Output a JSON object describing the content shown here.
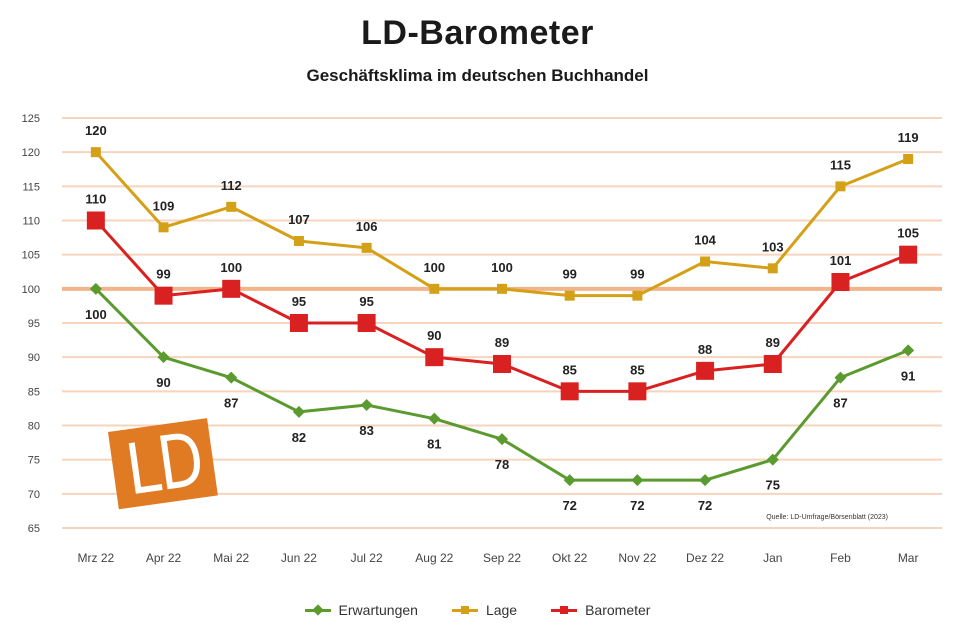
{
  "chart_data": {
    "type": "line",
    "title": "LD-Barometer",
    "subtitle": "Geschäftsklima im deutschen Buchhandel",
    "source": "Quelle: LD-Umfrage/Börsenblatt (2023)",
    "categories": [
      "Mrz 22",
      "Apr 22",
      "Mai 22",
      "Jun 22",
      "Jul 22",
      "Aug 22",
      "Sep 22",
      "Okt 22",
      "Nov 22",
      "Dez 22",
      "Jan",
      "Feb",
      "Mar"
    ],
    "ylim": [
      65,
      125
    ],
    "yticks": [
      65,
      70,
      75,
      80,
      85,
      90,
      95,
      100,
      105,
      110,
      115,
      120,
      125
    ],
    "grid": true,
    "highlight_line": 100,
    "legend_position": "bottom",
    "series": [
      {
        "name": "Erwartungen",
        "color": "#5b9a2e",
        "marker": "diamond",
        "values": [
          100,
          90,
          87,
          82,
          83,
          81,
          78,
          72,
          72,
          72,
          75,
          87,
          91
        ],
        "labels": [
          "100",
          "90",
          "87",
          "82",
          "83",
          "81",
          "78",
          "72",
          "72",
          "72",
          "75",
          "87",
          "91"
        ],
        "label_pos": "below"
      },
      {
        "name": "Lage",
        "color": "#d4a017",
        "marker": "square",
        "values": [
          120,
          109,
          112,
          107,
          106,
          100,
          100,
          99,
          99,
          104,
          103,
          115,
          119
        ],
        "labels": [
          "120",
          "109",
          "112",
          "107",
          "106",
          "100",
          "100",
          "99",
          "99",
          "104",
          "103",
          "115",
          "119"
        ],
        "label_pos": "above"
      },
      {
        "name": "Barometer",
        "color": "#d92121",
        "marker": "square",
        "values": [
          110,
          99,
          100,
          95,
          95,
          90,
          89,
          85,
          85,
          88,
          89,
          101,
          105
        ],
        "labels": [
          "110",
          "99",
          "100",
          "95",
          "95",
          "90",
          "89",
          "85",
          "85",
          "88",
          "89",
          "101",
          "105"
        ],
        "label_pos": "above"
      }
    ]
  },
  "logo": {
    "text": "LD",
    "color": "#e07b24"
  }
}
